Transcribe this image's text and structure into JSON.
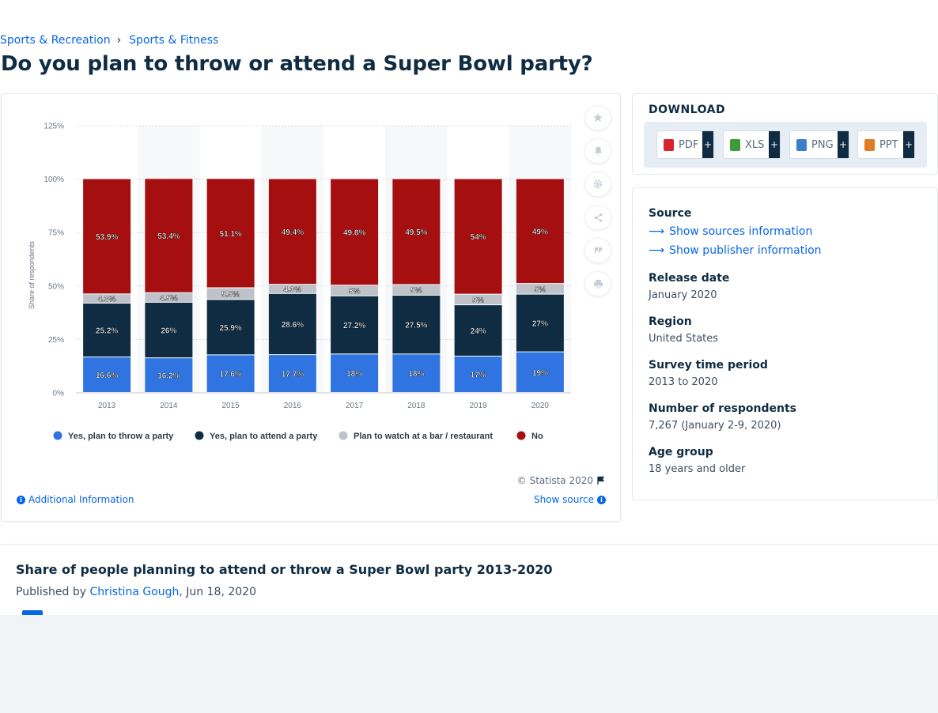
{
  "breadcrumb": {
    "items": [
      "Sports & Recreation",
      "Sports & Fitness"
    ],
    "separator": "›"
  },
  "page_title": "Do you plan to throw or attend a Super Bowl party?",
  "chart_data": {
    "type": "bar",
    "stacked": true,
    "title": "Do you plan to throw or attend a Super Bowl party?",
    "xlabel": "",
    "ylabel": "Share of respondents",
    "categories": [
      "2013",
      "2014",
      "2015",
      "2016",
      "2017",
      "2018",
      "2019",
      "2020"
    ],
    "y_ticks": [
      "0%",
      "25%",
      "50%",
      "75%",
      "100%",
      "125%"
    ],
    "ylim": [
      0,
      125
    ],
    "grid": true,
    "legend_position": "bottom",
    "series": [
      {
        "name": "Yes, plan to throw a party",
        "color": "#2f74e0",
        "values": [
          16.6,
          16.2,
          17.6,
          17.7,
          18,
          18,
          17,
          19
        ],
        "labels": [
          "16.6%",
          "16.2%",
          "17.6%",
          "17.7%",
          "18%",
          "18%",
          "17%",
          "19%"
        ]
      },
      {
        "name": "Yes, plan to attend a party",
        "color": "#0f2c43",
        "values": [
          25.2,
          26,
          25.9,
          28.6,
          27.2,
          27.5,
          24,
          27
        ],
        "labels": [
          "25.2%",
          "26%",
          "25.9%",
          "28.6%",
          "27.2%",
          "27.5%",
          "24%",
          "27%"
        ]
      },
      {
        "name": "Plan to watch at a bar / restaurant",
        "color": "#bfc3c9",
        "values": [
          4.3,
          4.5,
          5.5,
          4.3,
          5,
          5,
          5,
          5
        ],
        "labels": [
          "4.3%",
          "4.5%",
          "5.5%",
          "4.3%",
          "5%",
          "5%",
          "5%",
          "5%"
        ]
      },
      {
        "name": "No",
        "color": "#a50f0f",
        "values": [
          53.9,
          53.4,
          51.1,
          49.4,
          49.8,
          49.5,
          54,
          49
        ],
        "labels": [
          "53.9%",
          "53.4%",
          "51.1%",
          "49.4%",
          "49.8%",
          "49.5%",
          "54%",
          "49%"
        ]
      }
    ]
  },
  "chart_footer": {
    "credit": "© Statista 2020",
    "additional_info": "Additional Information",
    "show_source": "Show source"
  },
  "tools": [
    "star-icon",
    "bell-icon",
    "gear-icon",
    "share-icon",
    "quote-icon",
    "print-icon"
  ],
  "download": {
    "title": "DOWNLOAD",
    "buttons": [
      {
        "label": "PDF",
        "color": "#d8232a"
      },
      {
        "label": "XLS",
        "color": "#3f9b36"
      },
      {
        "label": "PNG",
        "color": "#3c7ec8"
      },
      {
        "label": "PPT",
        "color": "#e07a23"
      }
    ],
    "plus": "+"
  },
  "meta": {
    "source_label": "Source",
    "show_sources": "Show sources information",
    "show_publisher": "Show publisher information",
    "release_label": "Release date",
    "release_value": "January 2020",
    "region_label": "Region",
    "region_value": "United States",
    "survey_label": "Survey time period",
    "survey_value": "2013 to 2020",
    "respondents_label": "Number of respondents",
    "respondents_value": "7,267 (January 2-9, 2020)",
    "age_label": "Age group",
    "age_value": "18 years and older"
  },
  "description": {
    "title": "Share of people planning to attend or throw a Super Bowl party 2013-2020",
    "published_by": "Published by",
    "author": "Christina Gough",
    "date": ", Jun 18, 2020"
  }
}
